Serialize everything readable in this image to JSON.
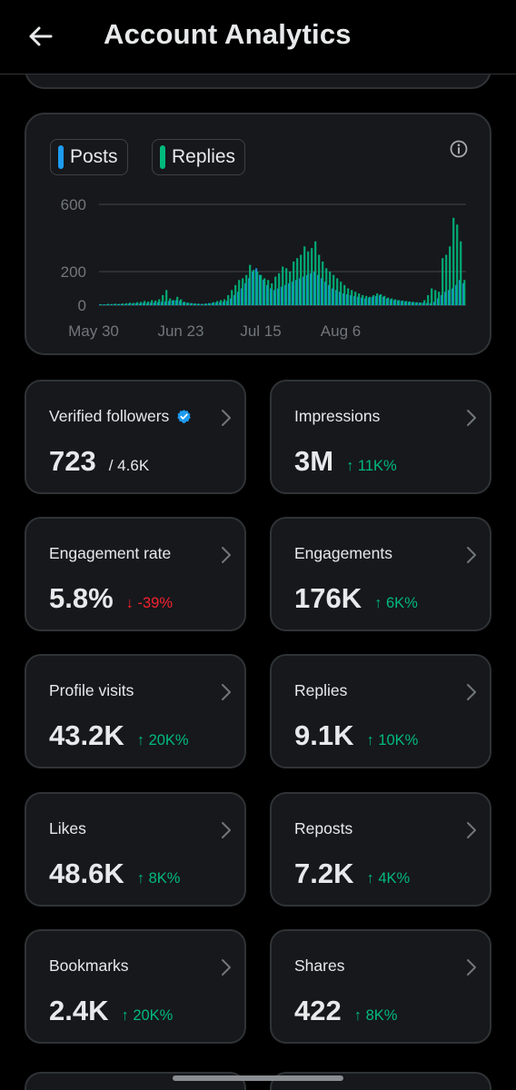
{
  "header": {
    "title": "Account Analytics"
  },
  "chart": {
    "legend": [
      {
        "label": "Posts",
        "color": "#1d9bf0"
      },
      {
        "label": "Replies",
        "color": "#00ba7c"
      }
    ]
  },
  "chart_data": {
    "type": "bar",
    "title": "",
    "xlabel": "",
    "ylabel": "",
    "yticks": [
      "600",
      "200",
      "0"
    ],
    "ylim": [
      0,
      600
    ],
    "xticks": [
      "May 30",
      "Jun 23",
      "Jul 15",
      "Aug 6"
    ],
    "x_start": "2025-05-30",
    "categories_count": 101,
    "series": [
      {
        "name": "Posts",
        "color": "#1d9bf0",
        "values": [
          5,
          4,
          6,
          5,
          7,
          6,
          8,
          7,
          10,
          9,
          12,
          11,
          14,
          13,
          15,
          16,
          18,
          20,
          22,
          25,
          28,
          30,
          26,
          18,
          14,
          12,
          10,
          9,
          8,
          10,
          12,
          14,
          16,
          18,
          20,
          25,
          40,
          60,
          80,
          100,
          130,
          160,
          200,
          220,
          180,
          150,
          120,
          100,
          90,
          100,
          110,
          120,
          130,
          140,
          150,
          160,
          170,
          180,
          190,
          200,
          180,
          160,
          140,
          120,
          100,
          90,
          80,
          70,
          65,
          60,
          55,
          50,
          45,
          40,
          45,
          50,
          55,
          60,
          50,
          40,
          35,
          30,
          28,
          25,
          22,
          20,
          18,
          16,
          15,
          14,
          13,
          12,
          20,
          40,
          60,
          80,
          90,
          100,
          120,
          150,
          130
        ]
      },
      {
        "name": "Replies",
        "color": "#00ba7c",
        "values": [
          6,
          5,
          8,
          7,
          9,
          8,
          10,
          12,
          15,
          14,
          18,
          20,
          25,
          22,
          30,
          28,
          35,
          60,
          90,
          40,
          30,
          50,
          35,
          20,
          15,
          12,
          10,
          8,
          7,
          9,
          12,
          18,
          25,
          30,
          35,
          60,
          90,
          120,
          150,
          160,
          180,
          240,
          210,
          200,
          180,
          160,
          150,
          130,
          170,
          190,
          230,
          220,
          200,
          260,
          280,
          300,
          350,
          320,
          340,
          380,
          300,
          260,
          220,
          200,
          180,
          160,
          140,
          120,
          100,
          90,
          80,
          70,
          60,
          55,
          50,
          60,
          70,
          65,
          55,
          45,
          40,
          35,
          30,
          28,
          25,
          22,
          20,
          18,
          16,
          30,
          60,
          100,
          90,
          80,
          280,
          300,
          350,
          520,
          480,
          380,
          150
        ]
      }
    ]
  },
  "stats": [
    {
      "label": "Verified followers",
      "value": "723",
      "sub": "/ 4.6K"
    },
    {
      "label": "Impressions",
      "value": "3M",
      "change": "↑ 11K%",
      "dir": "up"
    },
    {
      "label": "Engagement rate",
      "value": "5.8%",
      "change": "↓ -39%",
      "dir": "down"
    },
    {
      "label": "Engagements",
      "value": "176K",
      "change": "↑ 6K%",
      "dir": "up"
    },
    {
      "label": "Profile visits",
      "value": "43.2K",
      "change": "↑ 20K%",
      "dir": "up"
    },
    {
      "label": "Replies",
      "value": "9.1K",
      "change": "↑ 10K%",
      "dir": "up"
    },
    {
      "label": "Likes",
      "value": "48.6K",
      "change": "↑ 8K%",
      "dir": "up"
    },
    {
      "label": "Reposts",
      "value": "7.2K",
      "change": "↑ 4K%",
      "dir": "up"
    },
    {
      "label": "Bookmarks",
      "value": "2.4K",
      "change": "↑ 20K%",
      "dir": "up"
    },
    {
      "label": "Shares",
      "value": "422",
      "change": "↑ 8K%",
      "dir": "up"
    }
  ],
  "colors": {
    "background": "#000000",
    "card": "#16181c",
    "border": "#2f3336",
    "text": "#e7e9ea",
    "muted": "#71767b",
    "up": "#00ba7c",
    "down": "#f4212e",
    "verified": "#1d9bf0"
  }
}
